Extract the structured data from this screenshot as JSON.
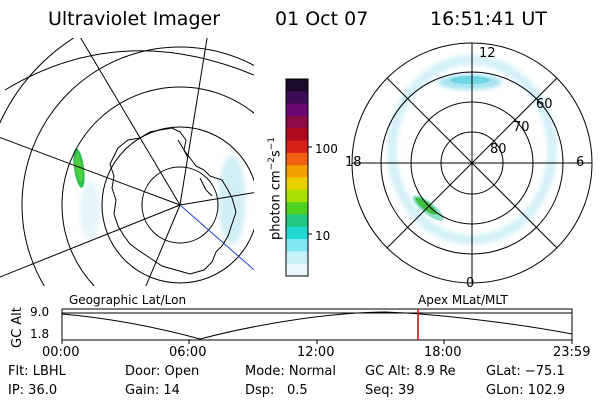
{
  "header": {
    "instrument": "Ultraviolet Imager",
    "date": "01 Oct 07",
    "time": "16:51:41 UT"
  },
  "colorbar": {
    "unit_label": "photon cm",
    "unit_exp1": "−2",
    "unit_mid": "s",
    "unit_exp2": "−1",
    "ticks": [
      "100",
      "10"
    ],
    "colors": [
      "#1a0a2a",
      "#3d0a55",
      "#6a0a70",
      "#8c0a45",
      "#b00a20",
      "#d8201a",
      "#f06010",
      "#f5a000",
      "#e8d000",
      "#a8e000",
      "#50d020",
      "#20c880",
      "#20d8d0",
      "#80e8f0",
      "#c8f0f8",
      "#e8f8fc"
    ]
  },
  "left_map": {
    "name": "Geographic Lat/Lon"
  },
  "right_map": {
    "name": "Apex  MLat/MLT",
    "mlt_labels": {
      "top": "12",
      "bottom": "0",
      "left": "18",
      "right": "6"
    },
    "lat_labels": [
      "60",
      "70",
      "80"
    ]
  },
  "timeline": {
    "ylabel": "GC Alt",
    "ytick_top": "9.0",
    "ytick_bottom": "1.8",
    "xticks": [
      "00:00",
      "06:00",
      "12:00",
      "18:00",
      "23:59"
    ],
    "current_marker_color": "#d00000"
  },
  "status": {
    "flt": "Flt: LBHL",
    "door": "Door: Open",
    "mode": "Mode: Normal",
    "gc_alt": "GC Alt: 8.9 Re",
    "glat": "GLat: −75.1",
    "ip": "IP: 36.0",
    "gain": "Gain: 14",
    "dsp_label": "Dsp:",
    "dsp_value": "0.5",
    "seq": "Seq: 39",
    "glon": "GLon: 102.9"
  }
}
